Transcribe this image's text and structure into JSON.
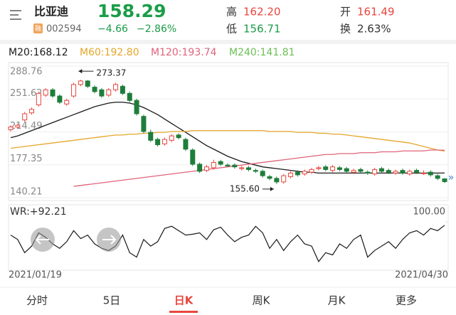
{
  "header": {
    "name": "比亚迪",
    "badge": "融",
    "code": "002594",
    "price": "158.29",
    "change": "−4.66",
    "change_pct": "−2.86%",
    "high_label": "高",
    "high": "162.20",
    "low_label": "低",
    "low": "156.71",
    "open_label": "开",
    "open": "161.49",
    "turnover_label": "换",
    "turnover": "2.63%"
  },
  "legend": [
    "M20:168.12",
    "M60:192.80",
    "M120:193.74",
    "M240:141.81"
  ],
  "legend_colors": [
    "#1a1a1a",
    "#e5a629",
    "#e0637a",
    "#6bbf55"
  ],
  "tabs": [
    "分时",
    "5日",
    "日K",
    "周K",
    "月K",
    "更多"
  ],
  "active_tab": 2,
  "chart_data": [
    {
      "type": "candlestick",
      "up_color": "#e8463f",
      "down_color": "#1e7d3a",
      "ylim": [
        140.21,
        288.76
      ],
      "yticks": [
        288.76,
        251.62,
        214.49,
        177.35,
        140.21
      ],
      "annotations": [
        {
          "text": "273.37",
          "index": 10
        },
        {
          "text": "155.60",
          "index": 38
        }
      ],
      "open": [
        217,
        220,
        228,
        236,
        245,
        256,
        262,
        255,
        246,
        255,
        268,
        272,
        265,
        262,
        256,
        262,
        266,
        258,
        250,
        232,
        214,
        206,
        201,
        205,
        211,
        206,
        194,
        178,
        171,
        174,
        181,
        177,
        177,
        173,
        174,
        171,
        170,
        164,
        162,
        158,
        164,
        169,
        167,
        169,
        173,
        175,
        171,
        174,
        173,
        169,
        172,
        169,
        167,
        173,
        171,
        168,
        171,
        167,
        171,
        168,
        169,
        165,
        161.49
      ],
      "high": [
        222,
        224,
        237,
        242,
        260,
        264,
        264,
        257,
        252,
        270,
        273.37,
        273,
        267,
        264,
        264,
        270,
        268,
        260,
        252,
        234,
        217,
        208,
        208,
        212,
        213,
        208,
        196,
        180,
        177,
        183,
        183,
        179,
        179,
        176,
        176,
        173,
        172,
        166,
        164,
        167,
        170,
        171,
        172,
        174,
        176,
        177,
        177,
        176,
        175,
        173,
        174,
        171,
        174,
        175,
        173,
        172,
        173,
        172,
        173,
        171,
        171,
        167,
        162.2
      ],
      "low": [
        215,
        218,
        226,
        234,
        243,
        254,
        253,
        246,
        244,
        253,
        266,
        264,
        258,
        253,
        254,
        260,
        256,
        248,
        233,
        213,
        203,
        198,
        199,
        203,
        206,
        193,
        176,
        168,
        169,
        172,
        176,
        175,
        173,
        171,
        170,
        168,
        163,
        160,
        155.6,
        156,
        162,
        164,
        165,
        167,
        171,
        170,
        169,
        170,
        168,
        167,
        168,
        166,
        165,
        168,
        167,
        166,
        166,
        165,
        167,
        166,
        164,
        160,
        156.71
      ],
      "close": [
        220,
        222,
        235,
        240,
        258,
        262,
        255,
        248,
        250,
        268,
        272,
        266,
        260,
        255,
        262,
        268,
        258,
        250,
        235,
        215,
        205,
        200,
        206,
        210,
        208,
        195,
        178,
        170,
        175,
        180,
        178,
        176,
        175,
        174,
        172,
        170,
        165,
        162,
        158,
        165,
        168,
        166,
        170,
        172,
        174,
        172,
        175,
        172,
        170,
        171,
        170,
        168,
        172,
        170,
        169,
        170,
        168,
        170,
        169,
        168,
        166,
        162,
        158.29
      ],
      "series": [
        {
          "color": "#1a1a1a",
          "values": [
            208,
            210,
            213,
            216,
            219,
            222,
            225,
            228,
            231,
            234,
            237,
            240,
            243,
            245,
            247,
            248,
            248,
            247,
            245,
            242,
            238,
            234,
            229,
            224,
            219,
            214,
            209,
            204,
            199,
            195,
            191,
            187,
            184,
            181,
            179,
            177,
            175,
            174,
            173,
            172,
            171,
            170,
            169,
            169,
            168,
            168,
            168,
            168,
            168,
            168,
            168,
            168,
            168,
            168,
            168,
            168,
            168,
            168,
            168,
            168,
            168,
            168,
            168.12
          ]
        },
        {
          "color": "#e5a629",
          "values": [
            196,
            197,
            198,
            199,
            200,
            201,
            202,
            203,
            204,
            205,
            206,
            207,
            208,
            209,
            210,
            211,
            211,
            212,
            212,
            213,
            213,
            214,
            214,
            215,
            215,
            215,
            216,
            216,
            216,
            216,
            216,
            216,
            216,
            216,
            216,
            216,
            216,
            215,
            215,
            215,
            215,
            214,
            214,
            214,
            213,
            213,
            212,
            212,
            211,
            210,
            209,
            208,
            207,
            206,
            205,
            204,
            203,
            202,
            200,
            198,
            196,
            194,
            192.8
          ]
        },
        {
          "color": "#e0637a",
          "values": [
            null,
            null,
            null,
            null,
            null,
            null,
            null,
            null,
            null,
            153,
            154,
            155,
            156,
            157,
            158,
            159,
            160,
            161,
            162,
            163,
            164,
            165,
            166,
            167,
            168,
            169,
            170,
            171,
            172,
            173,
            174,
            175,
            176,
            177,
            178,
            179,
            180,
            181,
            182,
            183,
            184,
            185,
            186,
            187,
            188,
            189,
            189,
            190,
            190,
            190,
            191,
            191,
            191,
            192,
            192,
            192,
            193,
            193,
            193,
            193,
            194,
            194,
            193.74
          ]
        }
      ]
    },
    {
      "type": "line",
      "title": "WR:+92.21",
      "ylim": [
        0,
        100
      ],
      "yticks": [
        {
          "value": 100,
          "label": "100.00"
        }
      ],
      "x_labels": [
        "2021/01/19",
        "2021/04/30"
      ],
      "series": [
        {
          "color": "#1a1a1a",
          "values": [
            70,
            60,
            30,
            45,
            75,
            65,
            50,
            40,
            55,
            80,
            62,
            70,
            50,
            40,
            35,
            45,
            70,
            30,
            20,
            60,
            45,
            55,
            85,
            90,
            80,
            70,
            72,
            75,
            60,
            82,
            88,
            70,
            55,
            65,
            70,
            90,
            75,
            40,
            60,
            35,
            55,
            70,
            50,
            45,
            10,
            30,
            25,
            50,
            40,
            60,
            70,
            20,
            35,
            45,
            55,
            40,
            60,
            75,
            80,
            70,
            85,
            80,
            92.21
          ]
        }
      ]
    }
  ]
}
